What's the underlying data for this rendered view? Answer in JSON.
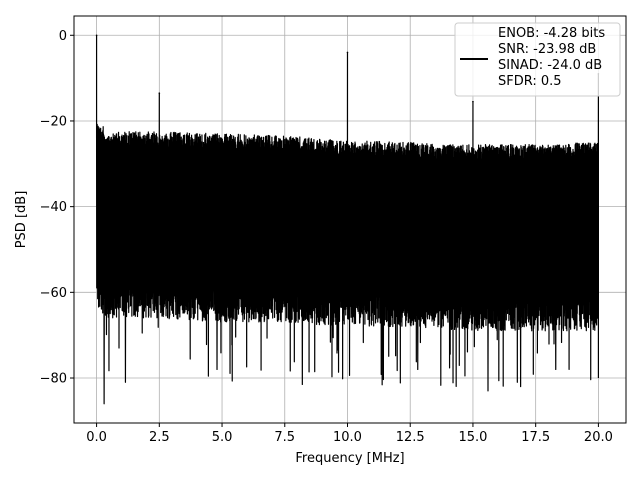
{
  "chart_data": {
    "type": "line",
    "xlabel": "Frequency [MHz]",
    "ylabel": "PSD [dB]",
    "xlim": [
      -0.9,
      21.1
    ],
    "ylim": [
      -90.5,
      4.5
    ],
    "xticks": [
      0.0,
      2.5,
      5.0,
      7.5,
      10.0,
      12.5,
      15.0,
      17.5,
      20.0
    ],
    "xtick_labels": [
      "0.0",
      "2.5",
      "5.0",
      "7.5",
      "10.0",
      "12.5",
      "15.0",
      "17.5",
      "20.0"
    ],
    "yticks": [
      0,
      -20,
      -40,
      -60,
      -80
    ],
    "ytick_labels": [
      "0",
      "−20",
      "−40",
      "−60",
      "−80"
    ],
    "grid": true,
    "legend_position": "top-right",
    "legend_entries": [
      "ENOB: -4.28 bits",
      "SNR: -23.98 dB",
      "SINAD: -24.0 dB",
      "SFDR: 0.5"
    ],
    "line_color": "#000000",
    "series": [
      {
        "noise_floor": {
          "x": [
            0.0,
            0.5,
            2.5,
            5.0,
            7.5,
            10.0,
            12.5,
            15.0,
            17.5,
            20.0
          ],
          "upper": [
            -20,
            -22.5,
            -22.5,
            -23,
            -23.5,
            -24.5,
            -25,
            -25.5,
            -25.5,
            -25
          ],
          "lower": [
            -60,
            -62,
            -62,
            -63,
            -63,
            -64,
            -64,
            -65,
            -65,
            -65
          ],
          "min_dip": -86
        },
        "peaks": [
          {
            "x": 0.0,
            "y": 0.0
          },
          {
            "x": 2.5,
            "y": -13.5
          },
          {
            "x": 10.0,
            "y": -4.0
          },
          {
            "x": 15.0,
            "y": -15.5
          },
          {
            "x": 20.0,
            "y": -9.0
          }
        ],
        "dips": [
          {
            "x": 0.3,
            "y": -86
          },
          {
            "x": 1.15,
            "y": -81
          },
          {
            "x": 4.8,
            "y": -78
          },
          {
            "x": 8.2,
            "y": -81.5
          },
          {
            "x": 12.8,
            "y": -78
          },
          {
            "x": 15.6,
            "y": -83
          },
          {
            "x": 16.9,
            "y": -82
          },
          {
            "x": 18.3,
            "y": -78
          },
          {
            "x": 20.0,
            "y": -80
          }
        ]
      }
    ]
  }
}
